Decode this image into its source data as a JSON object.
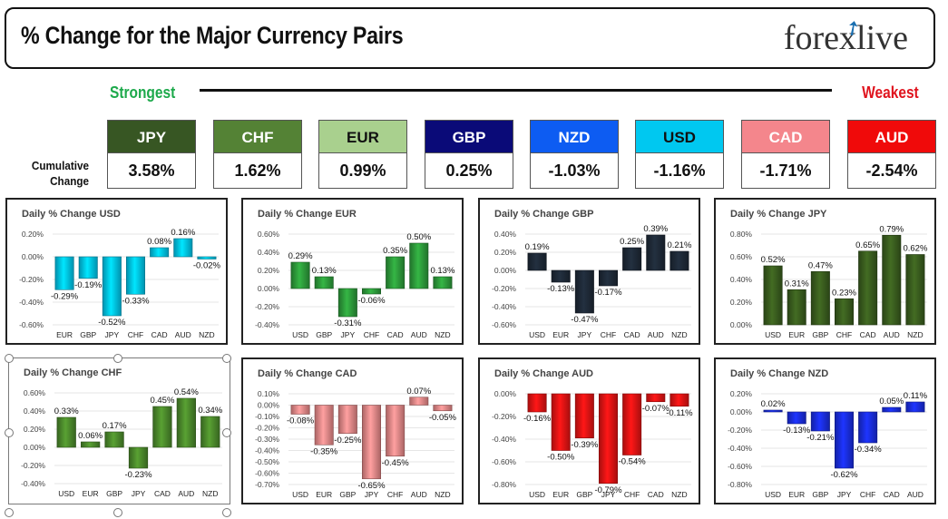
{
  "header": {
    "title": "% Change for the Major Currency Pairs",
    "logo": "forexlive"
  },
  "labels": {
    "strongest": "Strongest",
    "weakest": "Weakest",
    "cumulative": "Cumulative Change"
  },
  "currencies": [
    {
      "code": "JPY",
      "value": "3.58%",
      "bg": "#375623",
      "fg": "#ffffff"
    },
    {
      "code": "CHF",
      "value": "1.62%",
      "bg": "#548235",
      "fg": "#ffffff"
    },
    {
      "code": "EUR",
      "value": "0.99%",
      "bg": "#a9d08e",
      "fg": "#111111"
    },
    {
      "code": "GBP",
      "value": "0.25%",
      "bg": "#0a0a78",
      "fg": "#ffffff"
    },
    {
      "code": "NZD",
      "value": "-1.03%",
      "bg": "#0d5cf2",
      "fg": "#ffffff"
    },
    {
      "code": "USD",
      "value": "-1.16%",
      "bg": "#00c8f0",
      "fg": "#111111"
    },
    {
      "code": "CAD",
      "value": "-1.71%",
      "bg": "#f4868c",
      "fg": "#ffffff"
    },
    {
      "code": "AUD",
      "value": "-2.54%",
      "bg": "#f00a0a",
      "fg": "#ffffff"
    }
  ],
  "chart_data": [
    {
      "type": "bar",
      "title": "Daily % Change USD",
      "color": "#00c8f0",
      "categories": [
        "EUR",
        "GBP",
        "JPY",
        "CHF",
        "CAD",
        "AUD",
        "NZD"
      ],
      "values": [
        -0.29,
        -0.19,
        -0.52,
        -0.33,
        0.08,
        0.16,
        -0.02
      ],
      "labels": [
        "-0.29%",
        "-0.19%",
        "-0.52%",
        "-0.33%",
        "0.08%",
        "0.16%",
        "-0.02%"
      ],
      "ticks": [
        "0.20%",
        "0.00%",
        "-0.20%",
        "-0.40%",
        "-0.60%"
      ],
      "ylim": [
        -0.6,
        0.2
      ]
    },
    {
      "type": "bar",
      "title": "Daily % Change EUR",
      "color": "#2e9e3c",
      "categories": [
        "USD",
        "GBP",
        "JPY",
        "CHF",
        "CAD",
        "AUD",
        "NZD"
      ],
      "values": [
        0.29,
        0.13,
        -0.31,
        -0.06,
        0.35,
        0.5,
        0.13
      ],
      "labels": [
        "0.29%",
        "0.13%",
        "-0.31%",
        "-0.06%",
        "0.35%",
        "0.50%",
        "0.13%"
      ],
      "ticks": [
        "0.60%",
        "0.40%",
        "0.20%",
        "0.00%",
        "-0.20%",
        "-0.40%"
      ],
      "ylim": [
        -0.4,
        0.6
      ]
    },
    {
      "type": "bar",
      "title": "Daily % Change GBP",
      "color": "#1e2a38",
      "categories": [
        "USD",
        "EUR",
        "JPY",
        "CHF",
        "CAD",
        "AUD",
        "NZD"
      ],
      "values": [
        0.19,
        -0.13,
        -0.47,
        -0.17,
        0.25,
        0.39,
        0.21
      ],
      "labels": [
        "0.19%",
        "-0.13%",
        "-0.47%",
        "-0.17%",
        "0.25%",
        "0.39%",
        "0.21%"
      ],
      "ticks": [
        "0.40%",
        "0.20%",
        "0.00%",
        "-0.20%",
        "-0.40%",
        "-0.60%"
      ],
      "ylim": [
        -0.6,
        0.4
      ]
    },
    {
      "type": "bar",
      "title": "Daily % Change JPY",
      "color": "#3a5e1e",
      "categories": [
        "USD",
        "EUR",
        "GBP",
        "CHF",
        "CAD",
        "AUD",
        "NZD"
      ],
      "values": [
        0.52,
        0.31,
        0.47,
        0.23,
        0.65,
        0.79,
        0.62
      ],
      "labels": [
        "0.52%",
        "0.31%",
        "0.47%",
        "0.23%",
        "0.65%",
        "0.79%",
        "0.62%"
      ],
      "ticks": [
        "0.80%",
        "0.60%",
        "0.40%",
        "0.20%",
        "0.00%"
      ],
      "ylim": [
        0,
        0.8
      ]
    },
    {
      "type": "bar",
      "title": "Daily % Change CHF",
      "color": "#4d8c2c",
      "categories": [
        "USD",
        "EUR",
        "GBP",
        "JPY",
        "CAD",
        "AUD",
        "NZD"
      ],
      "values": [
        0.33,
        0.06,
        0.17,
        -0.23,
        0.45,
        0.54,
        0.34
      ],
      "labels": [
        "0.33%",
        "0.06%",
        "0.17%",
        "-0.23%",
        "0.45%",
        "0.54%",
        "0.34%"
      ],
      "ticks": [
        "0.60%",
        "0.40%",
        "0.20%",
        "0.00%",
        "-0.20%",
        "-0.40%"
      ],
      "ylim": [
        -0.4,
        0.6
      ]
    },
    {
      "type": "bar",
      "title": "Daily % Change CAD",
      "color": "#ec8b8b",
      "categories": [
        "USD",
        "EUR",
        "GBP",
        "JPY",
        "CHF",
        "AUD",
        "NZD"
      ],
      "values": [
        -0.08,
        -0.35,
        -0.25,
        -0.65,
        -0.45,
        0.07,
        -0.05
      ],
      "labels": [
        "-0.08%",
        "-0.35%",
        "-0.25%",
        "-0.65%",
        "-0.45%",
        "0.07%",
        "-0.05%"
      ],
      "ticks": [
        "0.10%",
        "0.00%",
        "-0.10%",
        "-0.20%",
        "-0.30%",
        "-0.40%",
        "-0.50%",
        "-0.60%",
        "-0.70%"
      ],
      "ylim": [
        -0.7,
        0.1
      ]
    },
    {
      "type": "bar",
      "title": "Daily % Change AUD",
      "color": "#e81414",
      "categories": [
        "USD",
        "EUR",
        "GBP",
        "JPY",
        "CHF",
        "CAD",
        "NZD"
      ],
      "values": [
        -0.16,
        -0.5,
        -0.39,
        -0.79,
        -0.54,
        -0.07,
        -0.11
      ],
      "labels": [
        "-0.16%",
        "-0.50%",
        "-0.39%",
        "-0.79%",
        "-0.54%",
        "-0.07%",
        "-0.11%"
      ],
      "ticks": [
        "0.00%",
        "-0.20%",
        "-0.40%",
        "-0.60%",
        "-0.80%"
      ],
      "ylim": [
        -0.8,
        0
      ]
    },
    {
      "type": "bar",
      "title": "Daily % Change NZD",
      "color": "#1a2ee6",
      "categories": [
        "USD",
        "EUR",
        "GBP",
        "JPY",
        "CHF",
        "CAD",
        "AUD"
      ],
      "values": [
        0.02,
        -0.13,
        -0.21,
        -0.62,
        -0.34,
        0.05,
        0.11
      ],
      "labels": [
        "0.02%",
        "-0.13%",
        "-0.21%",
        "-0.62%",
        "-0.34%",
        "0.05%",
        "0.11%"
      ],
      "ticks": [
        "0.20%",
        "0.00%",
        "-0.20%",
        "-0.40%",
        "-0.60%",
        "-0.80%"
      ],
      "ylim": [
        -0.8,
        0.2
      ]
    }
  ]
}
